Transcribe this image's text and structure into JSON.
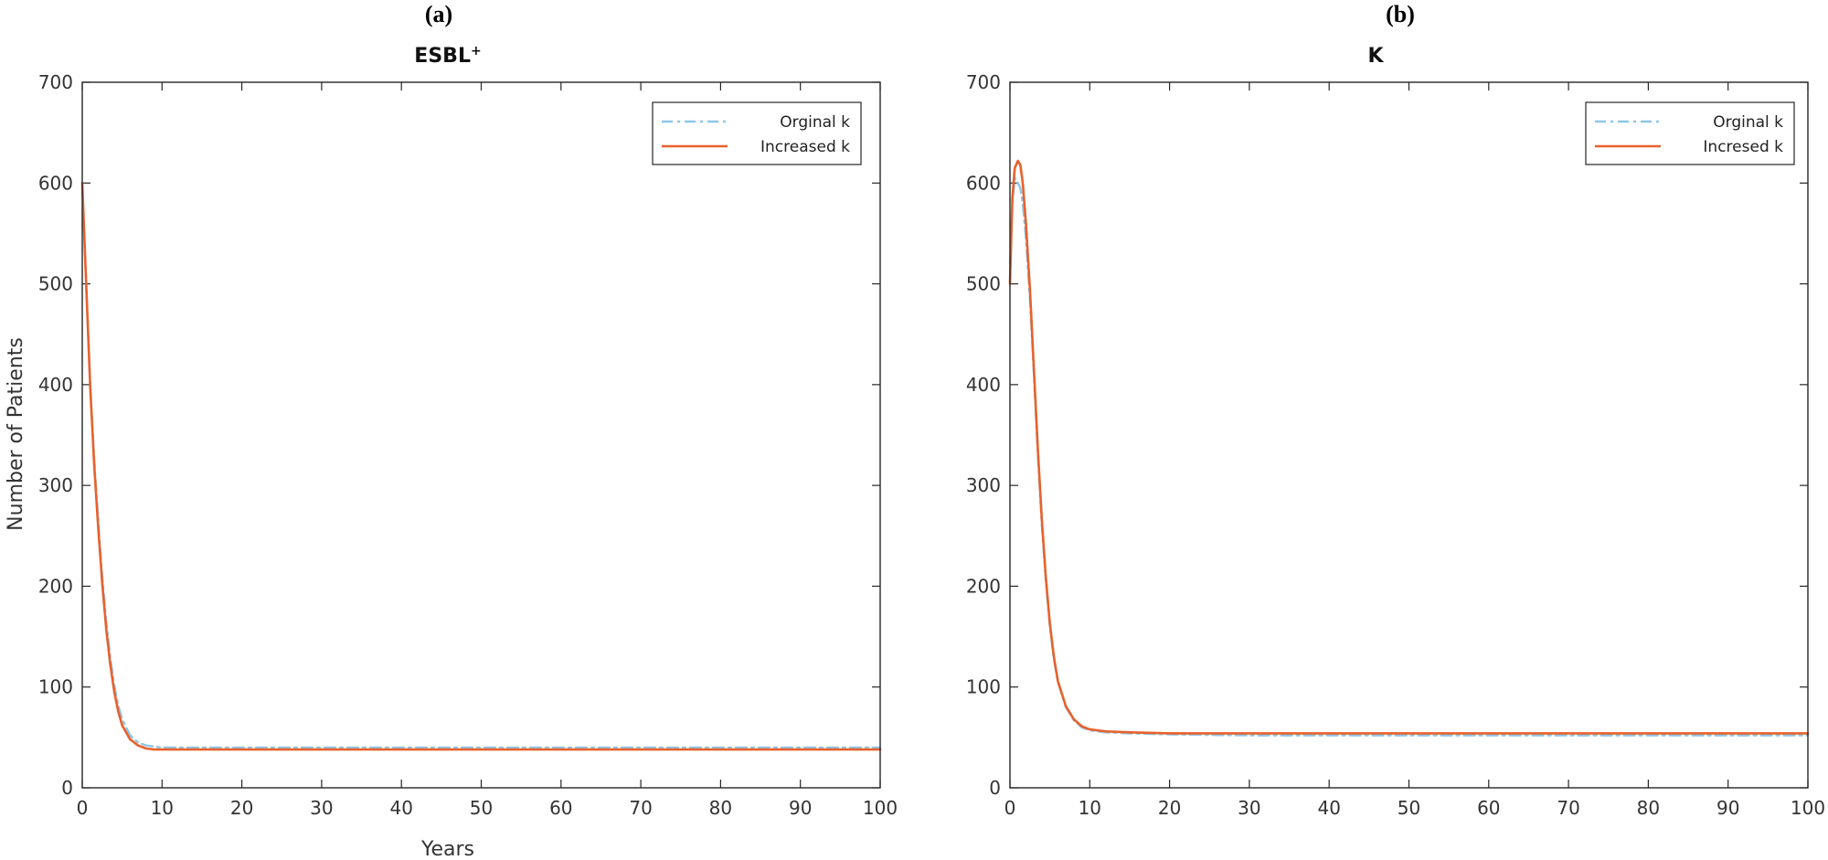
{
  "chart_data": [
    {
      "type": "line",
      "panel_label": "(a)",
      "title": "ESBL",
      "title_superscript": "+",
      "xlabel": "Years",
      "ylabel": "Number of Patients",
      "xlim": [
        0,
        100
      ],
      "ylim": [
        0,
        700
      ],
      "xticks": [
        "0",
        "10",
        "20",
        "30",
        "40",
        "50",
        "60",
        "70",
        "80",
        "90",
        "100"
      ],
      "yticks": [
        "0",
        "100",
        "200",
        "300",
        "400",
        "500",
        "600",
        "700"
      ],
      "grid": false,
      "legend": {
        "placement": "top-right"
      },
      "series": [
        {
          "name": "Orginal k",
          "color": "#8ec6e8",
          "style": "dashdot",
          "x": [
            0,
            0.5,
            1,
            1.5,
            2,
            2.5,
            3,
            3.5,
            4,
            4.5,
            5,
            6,
            7,
            8,
            9,
            10,
            12,
            15,
            20,
            30,
            40,
            50,
            60,
            70,
            80,
            90,
            100
          ],
          "y": [
            600,
            500,
            400,
            325,
            265,
            210,
            165,
            130,
            102,
            82,
            68,
            52,
            45,
            42,
            41,
            40,
            40,
            40,
            40,
            40,
            40,
            40,
            40,
            40,
            40,
            40,
            40
          ]
        },
        {
          "name": "Increased k",
          "color": "#e8612c",
          "style": "solid",
          "x": [
            0,
            0.5,
            1,
            1.5,
            2,
            2.5,
            3,
            3.5,
            4,
            4.5,
            5,
            6,
            7,
            8,
            9,
            10,
            12,
            15,
            20,
            30,
            40,
            50,
            60,
            70,
            80,
            90,
            100
          ],
          "y": [
            600,
            498,
            397,
            320,
            258,
            203,
            158,
            123,
            96,
            76,
            62,
            48,
            42,
            39,
            38,
            38,
            38,
            38,
            38,
            38,
            38,
            38,
            38,
            38,
            38,
            38,
            38
          ]
        }
      ]
    },
    {
      "type": "line",
      "panel_label": "(b)",
      "title": "K",
      "title_superscript": "",
      "xlabel": "",
      "ylabel": "",
      "xlim": [
        0,
        100
      ],
      "ylim": [
        0,
        700
      ],
      "xticks": [
        "0",
        "10",
        "20",
        "30",
        "40",
        "50",
        "60",
        "70",
        "80",
        "90",
        "100"
      ],
      "yticks": [
        "0",
        "100",
        "200",
        "300",
        "400",
        "500",
        "600",
        "700"
      ],
      "grid": false,
      "legend": {
        "placement": "top-right"
      },
      "series": [
        {
          "name": "Orginal k",
          "color": "#8ec6e8",
          "style": "dashdot",
          "x": [
            0,
            0.3,
            0.6,
            1,
            1.3,
            1.6,
            2,
            2.5,
            3,
            3.5,
            4,
            4.5,
            5,
            5.5,
            6,
            7,
            8,
            9,
            10,
            12,
            15,
            20,
            30,
            40,
            50,
            60,
            70,
            80,
            90,
            100
          ],
          "y": [
            520,
            580,
            605,
            600,
            595,
            580,
            545,
            485,
            410,
            330,
            260,
            205,
            160,
            128,
            105,
            80,
            67,
            60,
            57,
            55,
            54,
            53,
            52,
            52,
            52,
            52,
            52,
            52,
            52,
            52
          ]
        },
        {
          "name": "Incresed k",
          "color": "#e8612c",
          "style": "solid",
          "x": [
            0,
            0.3,
            0.6,
            1,
            1.3,
            1.6,
            2,
            2.5,
            3,
            3.5,
            4,
            4.5,
            5,
            5.5,
            6,
            7,
            8,
            9,
            10,
            12,
            15,
            20,
            30,
            40,
            50,
            60,
            70,
            80,
            90,
            100
          ],
          "y": [
            500,
            585,
            615,
            622,
            618,
            600,
            560,
            495,
            415,
            335,
            265,
            208,
            163,
            130,
            106,
            81,
            68,
            61,
            58,
            56,
            55,
            54,
            54,
            54,
            54,
            54,
            54,
            54,
            54,
            54
          ]
        }
      ]
    }
  ]
}
